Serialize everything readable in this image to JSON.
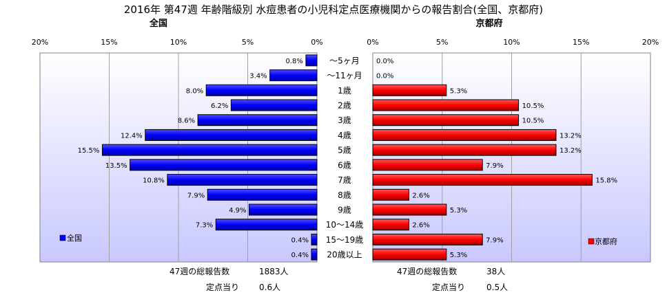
{
  "chart_data": {
    "type": "bar",
    "orientation": "horizontal",
    "layout": "back-to-back",
    "title": "2016年 第47週 年齢階級別 水痘患者の小児科定点医療機関からの報告割合(全国、京都府)",
    "categories": [
      "～5ヶ月",
      "～11ヶ月",
      "1歳",
      "2歳",
      "3歳",
      "4歳",
      "5歳",
      "6歳",
      "7歳",
      "8歳",
      "9歳",
      "10～14歳",
      "15～19歳",
      "20歳以上"
    ],
    "unit": "%",
    "xlim": [
      0,
      20
    ],
    "x_ticks": [
      0,
      5,
      10,
      15,
      20
    ],
    "x_tick_labels": [
      "0%",
      "5%",
      "10%",
      "15%",
      "20%"
    ],
    "series": [
      {
        "name": "全国",
        "panel_title": "全国",
        "side": "left",
        "color": "#0000ff",
        "values": [
          0.8,
          3.4,
          8.0,
          6.2,
          8.6,
          12.4,
          15.5,
          13.5,
          10.8,
          7.9,
          4.9,
          7.3,
          0.4,
          0.4
        ],
        "value_labels": [
          "0.8%",
          "3.4%",
          "8.0%",
          "6.2%",
          "8.6%",
          "12.4%",
          "15.5%",
          "13.5%",
          "10.8%",
          "7.9%",
          "4.9%",
          "7.3%",
          "0.4%",
          "0.4%"
        ],
        "legend": "全国",
        "legend_position": "bottom-left",
        "footer": [
          {
            "label": "47週の総報告数",
            "value": "1883人"
          },
          {
            "label": "定点当り",
            "value": "0.6人"
          }
        ]
      },
      {
        "name": "京都府",
        "panel_title": "京都府",
        "side": "right",
        "color": "#ff0000",
        "values": [
          0.0,
          0.0,
          5.3,
          10.5,
          10.5,
          13.2,
          13.2,
          7.9,
          15.8,
          2.6,
          5.3,
          2.6,
          7.9,
          5.3
        ],
        "value_labels": [
          "0.0%",
          "0.0%",
          "5.3%",
          "10.5%",
          "10.5%",
          "13.2%",
          "13.2%",
          "7.9%",
          "15.8%",
          "2.6%",
          "5.3%",
          "2.6%",
          "7.9%",
          "5.3%"
        ],
        "legend": "京都府",
        "legend_position": "bottom-right",
        "footer": [
          {
            "label": "47週の総報告数",
            "value": "38人"
          },
          {
            "label": "定点当り",
            "value": "0.5人"
          }
        ]
      }
    ],
    "grid": true,
    "colors": {
      "plot_background_top": "#ffffff",
      "plot_background_bottom": "#c8c8ff",
      "left_bar": "#0000ff",
      "right_bar": "#ff0000"
    }
  }
}
